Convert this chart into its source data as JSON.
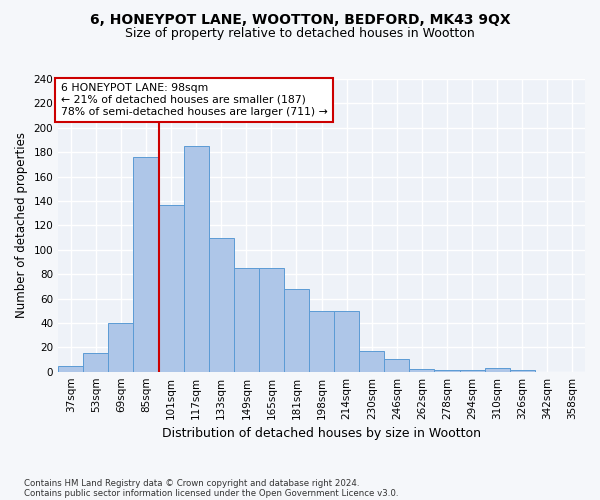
{
  "title": "6, HONEYPOT LANE, WOOTTON, BEDFORD, MK43 9QX",
  "subtitle": "Size of property relative to detached houses in Wootton",
  "xlabel": "Distribution of detached houses by size in Wootton",
  "ylabel": "Number of detached properties",
  "categories": [
    "37sqm",
    "53sqm",
    "69sqm",
    "85sqm",
    "101sqm",
    "117sqm",
    "133sqm",
    "149sqm",
    "165sqm",
    "181sqm",
    "198sqm",
    "214sqm",
    "230sqm",
    "246sqm",
    "262sqm",
    "278sqm",
    "294sqm",
    "310sqm",
    "326sqm",
    "342sqm",
    "358sqm"
  ],
  "values": [
    5,
    15,
    40,
    176,
    137,
    185,
    110,
    85,
    85,
    68,
    50,
    50,
    17,
    10,
    2,
    1,
    1,
    3,
    1,
    0,
    0
  ],
  "bar_color": "#aec6e8",
  "bar_edge_color": "#5b9bd5",
  "red_line_x": 3.5,
  "annotation_text": "6 HONEYPOT LANE: 98sqm\n← 21% of detached houses are smaller (187)\n78% of semi-detached houses are larger (711) →",
  "annotation_box_color": "#ffffff",
  "annotation_box_edge": "#cc0000",
  "ylim": [
    0,
    240
  ],
  "yticks": [
    0,
    20,
    40,
    60,
    80,
    100,
    120,
    140,
    160,
    180,
    200,
    220,
    240
  ],
  "footer1": "Contains HM Land Registry data © Crown copyright and database right 2024.",
  "footer2": "Contains public sector information licensed under the Open Government Licence v3.0.",
  "bg_color": "#eef2f8",
  "grid_color": "#ffffff",
  "title_fontsize": 10,
  "subtitle_fontsize": 9,
  "tick_fontsize": 7.5,
  "ylabel_fontsize": 8.5,
  "xlabel_fontsize": 9
}
